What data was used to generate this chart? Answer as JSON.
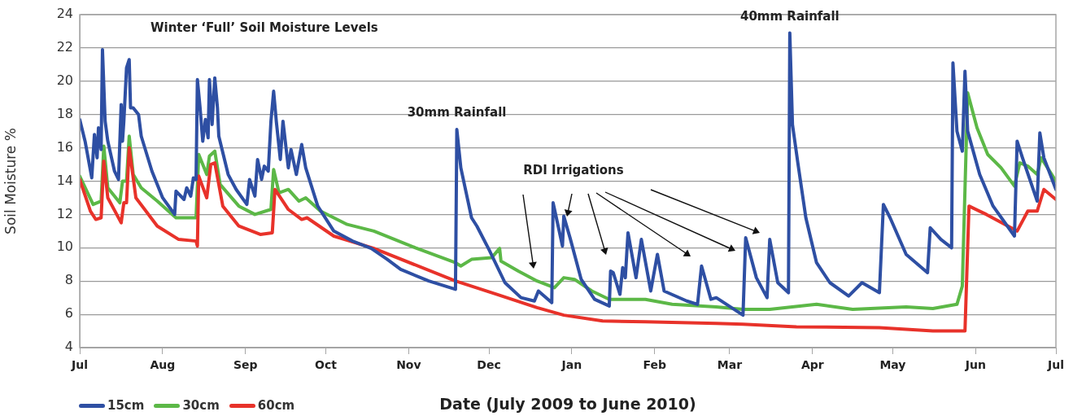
{
  "chart_data": {
    "type": "line",
    "xlabel": "Date (July 2009 to June 2010)",
    "ylabel": "Soil Moisture %",
    "xlim": [
      "2009-07-01",
      "2010-07-01"
    ],
    "xticks": [
      {
        "value": "2009-07-01",
        "label": "Jul"
      },
      {
        "value": "2009-08-01",
        "label": "Aug"
      },
      {
        "value": "2009-09-01",
        "label": "Sep"
      },
      {
        "value": "2009-10-01",
        "label": "Oct"
      },
      {
        "value": "2009-11-01",
        "label": "Nov"
      },
      {
        "value": "2009-12-01",
        "label": "Dec"
      },
      {
        "value": "2010-01-01",
        "label": "Jan"
      },
      {
        "value": "2010-02-01",
        "label": "Feb"
      },
      {
        "value": "2010-03-01",
        "label": "Mar"
      },
      {
        "value": "2010-04-01",
        "label": "Apr"
      },
      {
        "value": "2010-05-01",
        "label": "May"
      },
      {
        "value": "2010-06-01",
        "label": "Jun"
      },
      {
        "value": "2010-07-01",
        "label": "Jul"
      }
    ],
    "ylim": [
      4,
      24
    ],
    "yticks": [
      4,
      6,
      8,
      10,
      12,
      14,
      16,
      18,
      20,
      22,
      24
    ],
    "grid": "y",
    "legend": "bottom left",
    "marker": "none",
    "line_style": "solid",
    "annotations": [
      "Winter ‘Full’ Soil Moisture Levels",
      {
        "text": "30mm Rainfall",
        "x": "2009-11-19",
        "y": 17.1
      },
      "RDI Irrigations",
      {
        "text": "40mm Rainfall",
        "x": "2010-03-23T12:00",
        "y": 22.9
      }
    ],
    "series": [
      {
        "name": "15cm",
        "color": "#2e4fa3",
        "x": [
          "2009-07-01",
          "2009-07-03",
          "2009-07-05T12:00",
          "2009-07-06T12:00",
          "2009-07-07T12:00",
          "2009-07-08",
          "2009-07-09",
          "2009-07-09T12:00",
          "2009-07-10T12:00",
          "2009-07-11T12:00",
          "2009-07-14",
          "2009-07-15T12:00",
          "2009-07-16T12:00",
          "2009-07-17",
          "2009-07-17T12:00",
          "2009-07-18T12:00",
          "2009-07-19T12:00",
          "2009-07-20",
          "2009-07-21",
          "2009-07-23",
          "2009-07-24",
          "2009-07-28",
          "2009-08-01",
          "2009-08-05T12:00",
          "2009-08-06",
          "2009-08-09",
          "2009-08-10",
          "2009-08-11T12:00",
          "2009-08-12T12:00",
          "2009-08-13T12:00",
          "2009-08-14",
          "2009-08-15",
          "2009-08-16",
          "2009-08-17",
          "2009-08-18",
          "2009-08-18T12:00",
          "2009-08-19T12:00",
          "2009-08-20T12:00",
          "2009-08-21T12:00",
          "2009-08-22",
          "2009-08-25T12:00",
          "2009-08-28T12:00",
          "2009-09-01T12:00",
          "2009-09-02T12:00",
          "2009-09-04T12:00",
          "2009-09-05T12:00",
          "2009-09-07",
          "2009-09-08",
          "2009-09-09T12:00",
          "2009-09-10T12:00",
          "2009-09-11T12:00",
          "2009-09-12T12:00",
          "2009-09-14",
          "2009-09-15",
          "2009-09-17",
          "2009-09-18",
          "2009-09-20",
          "2009-09-22",
          "2009-09-23T12:00",
          "2009-09-28",
          "2009-10-04",
          "2009-10-11",
          "2009-10-18",
          "2009-10-24",
          "2009-10-29",
          "2009-11-08T12:00",
          "2009-11-18T12:00",
          "2009-11-19",
          "2009-11-20T12:00",
          "2009-11-24T12:00",
          "2009-11-26T12:00",
          "2009-12-01",
          "2009-12-07",
          "2009-12-13",
          "2009-12-18",
          "2009-12-19T12:00",
          "2009-12-24T12:00",
          "2009-12-25",
          "2009-12-28T12:00",
          "2009-12-29",
          "2009-12-31T12:00",
          "2010-01-04T12:00",
          "2010-01-09T12:00",
          "2010-01-15",
          "2010-01-15T12:00",
          "2010-01-16T12:00",
          "2010-01-19",
          "2010-01-20",
          "2010-01-21",
          "2010-01-22",
          "2010-01-25",
          "2010-01-27",
          "2010-01-30T12:00",
          "2010-02-02",
          "2010-02-04T12:00",
          "2010-02-13",
          "2010-02-17",
          "2010-02-18T12:00",
          "2010-02-22",
          "2010-02-24",
          "2010-03-06",
          "2010-03-07",
          "2010-03-11",
          "2010-03-15",
          "2010-03-16",
          "2010-03-19",
          "2010-03-23",
          "2010-03-23T12:00",
          "2010-03-24T12:00",
          "2010-03-26T12:00",
          "2010-03-29T12:00",
          "2010-04-02T12:00",
          "2010-04-07T12:00",
          "2010-04-14T12:00",
          "2010-04-19T12:00",
          "2010-04-26",
          "2010-04-27T12:00",
          "2010-04-30",
          "2010-05-06",
          "2010-05-14",
          "2010-05-15",
          "2010-05-19",
          "2010-05-23",
          "2010-05-23T12:00",
          "2010-05-25",
          "2010-05-27",
          "2010-05-28",
          "2010-05-29",
          "2010-06-02T12:00",
          "2010-06-07T12:00",
          "2010-06-15T12:00",
          "2010-06-16T12:00",
          "2010-06-18T12:00",
          "2010-06-24",
          "2010-06-25",
          "2010-06-26T12:00",
          "2010-07-01"
        ],
        "values": [
          17.7,
          16.4,
          14.2,
          16.8,
          15.4,
          17.2,
          15.9,
          21.9,
          17.6,
          16.4,
          14.6,
          14.1,
          18.6,
          16.4,
          17.6,
          20.8,
          21.3,
          18.4,
          18.4,
          18.0,
          16.7,
          14.6,
          13.0,
          12.0,
          13.4,
          12.9,
          13.6,
          13.1,
          14.2,
          14.1,
          20.1,
          18.4,
          16.4,
          17.7,
          16.6,
          20.1,
          17.4,
          20.2,
          18.4,
          16.7,
          14.4,
          13.5,
          12.6,
          14.1,
          13.1,
          15.3,
          14.1,
          14.9,
          14.6,
          17.6,
          19.4,
          17.6,
          15.3,
          17.6,
          14.8,
          15.9,
          14.4,
          16.2,
          14.8,
          12.5,
          11.0,
          10.4,
          9.96,
          9.3,
          8.7,
          8.0,
          7.5,
          17.1,
          14.8,
          11.8,
          11.3,
          9.9,
          7.9,
          7.0,
          6.8,
          7.4,
          6.7,
          12.7,
          10.1,
          11.9,
          10.5,
          8.1,
          6.9,
          6.5,
          8.6,
          8.5,
          7.2,
          8.8,
          8.2,
          10.9,
          8.2,
          10.5,
          7.4,
          9.6,
          7.4,
          6.8,
          6.6,
          8.9,
          6.9,
          7.0,
          5.95,
          10.6,
          8.2,
          7.0,
          10.5,
          7.9,
          7.3,
          22.9,
          17.4,
          15.1,
          11.8,
          9.1,
          7.9,
          7.1,
          7.9,
          7.3,
          12.6,
          11.8,
          9.6,
          8.5,
          11.2,
          10.5,
          10.0,
          21.1,
          17.0,
          15.8,
          20.6,
          17.0,
          14.4,
          12.5,
          10.7,
          16.4,
          15.4,
          12.8,
          16.9,
          15.4,
          13.5
        ]
      },
      {
        "name": "30cm",
        "color": "#5cb847",
        "x": [
          "2009-07-01",
          "2009-07-06",
          "2009-07-09",
          "2009-07-10",
          "2009-07-11T12:00",
          "2009-07-16",
          "2009-07-17",
          "2009-07-18T12:00",
          "2009-07-19T12:00",
          "2009-07-21",
          "2009-07-24",
          "2009-07-30",
          "2009-08-06",
          "2009-08-13T12:00",
          "2009-08-14T12:00",
          "2009-08-17T12:00",
          "2009-08-18T12:00",
          "2009-08-20T12:00",
          "2009-08-22T12:00",
          "2009-08-29T12:00",
          "2009-09-04T12:00",
          "2009-09-10T12:00",
          "2009-09-11T12:00",
          "2009-09-13T12:00",
          "2009-09-17",
          "2009-09-21",
          "2009-09-23T12:00",
          "2009-09-29",
          "2009-10-09",
          "2009-10-19",
          "2009-11-03T12:00",
          "2009-11-18T12:00",
          "2009-11-20T12:00",
          "2009-11-24T12:00",
          "2009-12-02",
          "2009-12-05",
          "2009-12-05T12:00",
          "2009-12-12",
          "2009-12-19",
          "2009-12-25T12:00",
          "2009-12-29",
          "2010-01-02",
          "2010-01-08T12:00",
          "2010-01-15",
          "2010-01-28T12:00",
          "2010-02-07T12:00",
          "2010-02-24",
          "2010-03-06",
          "2010-03-16",
          "2010-04-02T12:00",
          "2010-04-16",
          "2010-05-06",
          "2010-05-16",
          "2010-05-25",
          "2010-05-27",
          "2010-05-28",
          "2010-05-29",
          "2010-06-01T12:00",
          "2010-06-05T12:00",
          "2010-06-10T12:00",
          "2010-06-15T12:00",
          "2010-06-17T12:00",
          "2010-06-20T12:00",
          "2010-06-24",
          "2010-06-25T12:00",
          "2010-07-01"
        ],
        "values": [
          14.3,
          12.6,
          12.8,
          16.1,
          13.6,
          12.7,
          14.0,
          14.0,
          16.7,
          14.4,
          13.6,
          12.8,
          11.8,
          11.8,
          15.6,
          14.4,
          15.5,
          15.8,
          13.8,
          12.5,
          12.0,
          12.3,
          14.7,
          13.3,
          13.5,
          12.8,
          13.0,
          12.2,
          11.4,
          11.0,
          10.0,
          9.1,
          8.9,
          9.3,
          9.4,
          9.96,
          9.2,
          8.6,
          8.0,
          7.6,
          8.2,
          8.1,
          7.4,
          6.9,
          6.9,
          6.6,
          6.45,
          6.3,
          6.3,
          6.6,
          6.3,
          6.45,
          6.35,
          6.6,
          7.7,
          13.5,
          19.3,
          17.2,
          15.6,
          14.8,
          13.7,
          15.1,
          14.9,
          14.4,
          15.4,
          14.0
        ]
      },
      {
        "name": "60cm",
        "color": "#e8322a",
        "x": [
          "2009-07-01",
          "2009-07-05",
          "2009-07-07",
          "2009-07-09",
          "2009-07-10",
          "2009-07-11T12:00",
          "2009-07-16T12:00",
          "2009-07-17T12:00",
          "2009-07-18T12:00",
          "2009-07-19T12:00",
          "2009-07-22",
          "2009-07-30",
          "2009-08-07",
          "2009-08-13T12:00",
          "2009-08-14",
          "2009-08-14T12:00",
          "2009-08-17T12:00",
          "2009-08-19",
          "2009-08-20T12:00",
          "2009-08-23T12:00",
          "2009-08-29T12:00",
          "2009-09-06T12:00",
          "2009-09-11",
          "2009-09-12",
          "2009-09-17",
          "2009-09-22",
          "2009-09-24",
          "2009-10-04",
          "2009-10-19",
          "2009-11-18T12:00",
          "2009-12-04",
          "2009-12-19",
          "2009-12-29",
          "2010-01-12T12:00",
          "2010-01-28T12:00",
          "2010-02-24",
          "2010-03-06",
          "2010-03-26",
          "2010-04-26",
          "2010-05-16",
          "2010-05-28",
          "2010-05-29T12:00",
          "2010-06-05",
          "2010-06-16T12:00",
          "2010-06-20T12:00",
          "2010-06-24",
          "2010-06-26T12:00",
          "2010-07-01"
        ],
        "values": [
          14.1,
          12.2,
          11.7,
          11.8,
          15.2,
          13.0,
          11.5,
          12.7,
          12.7,
          16.0,
          13.0,
          11.3,
          10.5,
          10.4,
          10.1,
          14.3,
          13.0,
          15.0,
          15.1,
          12.5,
          11.3,
          10.8,
          10.9,
          13.5,
          12.3,
          11.7,
          11.8,
          10.7,
          9.96,
          8.0,
          7.2,
          6.4,
          5.95,
          5.6,
          5.55,
          5.45,
          5.4,
          5.25,
          5.2,
          5.0,
          5.0,
          12.5,
          12.0,
          11.0,
          12.2,
          12.2,
          13.5,
          12.9
        ]
      }
    ]
  }
}
